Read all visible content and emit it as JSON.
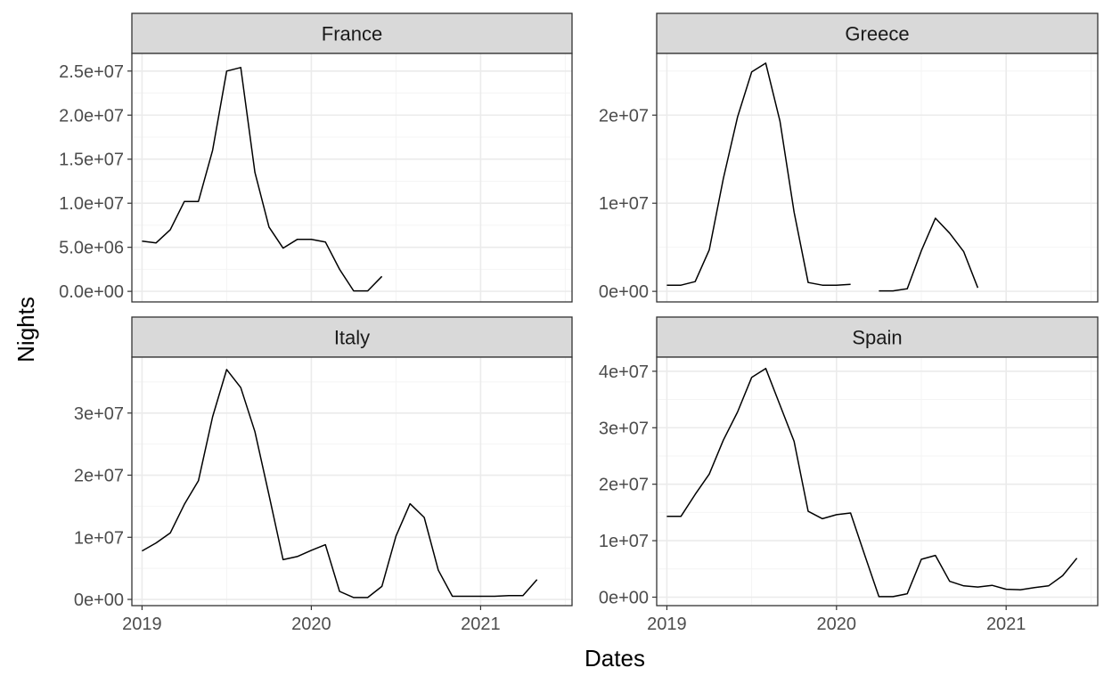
{
  "chart_data": {
    "type": "line",
    "layout": "facet-grid-2x2",
    "xlabel": "Dates",
    "ylabel": "Nights",
    "grid": true,
    "colors": {
      "line": "#000000",
      "strip_fill": "#d9d9d9",
      "panel_border": "#333333",
      "grid_major": "#ebebeb",
      "grid_minor": "#f4f4f4"
    },
    "x_range": [
      2018.94,
      2021.54
    ],
    "x_ticks": [
      2019,
      2020,
      2021
    ],
    "x_tick_labels": [
      "2019",
      "2020",
      "2021"
    ],
    "panels": [
      {
        "name": "France",
        "y_range": [
          -1200000,
          27000000
        ],
        "y_ticks": [
          0,
          5000000,
          10000000,
          15000000,
          20000000,
          25000000
        ],
        "y_tick_labels": [
          "0.0e+00",
          "5.0e+06",
          "1.0e+07",
          "1.5e+07",
          "2.0e+07",
          "2.5e+07"
        ],
        "x": [
          2019.0,
          2019.083,
          2019.167,
          2019.25,
          2019.333,
          2019.417,
          2019.5,
          2019.583,
          2019.667,
          2019.75,
          2019.833,
          2019.917,
          2020.0,
          2020.083,
          2020.167,
          2020.25,
          2020.333,
          2020.417
        ],
        "y": [
          5700000,
          5500000,
          7000000,
          10200000,
          10200000,
          16000000,
          25000000,
          25400000,
          13500000,
          7300000,
          4900000,
          5900000,
          5900000,
          5600000,
          2500000,
          50000,
          50000,
          1700000
        ]
      },
      {
        "name": "Greece",
        "y_range": [
          -1200000,
          27000000
        ],
        "y_ticks": [
          0,
          10000000,
          20000000
        ],
        "y_tick_labels": [
          "0e+00",
          "1e+07",
          "2e+07"
        ],
        "x": [
          2019.0,
          2019.083,
          2019.167,
          2019.25,
          2019.333,
          2019.417,
          2019.5,
          2019.583,
          2019.667,
          2019.75,
          2019.833,
          2019.917,
          2020.0,
          2020.083,
          null,
          2020.25,
          2020.333,
          2020.417,
          2020.5,
          2020.583,
          2020.667,
          2020.75,
          2020.833
        ],
        "y": [
          700000,
          700000,
          1100000,
          4700000,
          12800000,
          19800000,
          24900000,
          25900000,
          19300000,
          9000000,
          1000000,
          700000,
          700000,
          800000,
          null,
          50000,
          50000,
          300000,
          4600000,
          8300000,
          6600000,
          4500000,
          400000
        ]
      },
      {
        "name": "Italy",
        "y_range": [
          -1000000,
          39000000
        ],
        "y_ticks": [
          0,
          10000000,
          20000000,
          30000000
        ],
        "y_tick_labels": [
          "0e+00",
          "1e+07",
          "2e+07",
          "3e+07"
        ],
        "x": [
          2019.0,
          2019.083,
          2019.167,
          2019.25,
          2019.333,
          2019.417,
          2019.5,
          2019.583,
          2019.667,
          2019.75,
          2019.833,
          2019.917,
          2020.0,
          2020.083,
          2020.167,
          2020.25,
          2020.333,
          2020.417,
          2020.5,
          2020.583,
          2020.667,
          2020.75,
          2020.833,
          2020.917,
          2021.0,
          2021.083,
          2021.167,
          2021.25,
          2021.333
        ],
        "y": [
          7800000,
          9100000,
          10700000,
          15300000,
          19100000,
          29400000,
          37000000,
          34100000,
          27000000,
          16800000,
          6400000,
          6900000,
          7900000,
          8800000,
          1300000,
          300000,
          300000,
          2100000,
          10200000,
          15400000,
          13200000,
          4700000,
          500000,
          500000,
          500000,
          500000,
          600000,
          600000,
          3200000
        ]
      },
      {
        "name": "Spain",
        "y_range": [
          -1500000,
          42500000
        ],
        "y_ticks": [
          0,
          10000000,
          20000000,
          30000000,
          40000000
        ],
        "y_tick_labels": [
          "0e+00",
          "1e+07",
          "2e+07",
          "3e+07",
          "4e+07"
        ],
        "x": [
          2019.0,
          2019.083,
          2019.167,
          2019.25,
          2019.333,
          2019.417,
          2019.5,
          2019.583,
          2019.667,
          2019.75,
          2019.833,
          2019.917,
          2020.0,
          2020.083,
          2020.167,
          2020.25,
          2020.333,
          2020.417,
          2020.5,
          2020.583,
          2020.667,
          2020.75,
          2020.833,
          2020.917,
          2021.0,
          2021.083,
          2021.167,
          2021.25,
          2021.333,
          2021.417
        ],
        "y": [
          14300000,
          14300000,
          18200000,
          21800000,
          27800000,
          32800000,
          38900000,
          40500000,
          34000000,
          27600000,
          15200000,
          13900000,
          14600000,
          14900000,
          7400000,
          100000,
          100000,
          600000,
          6700000,
          7400000,
          2800000,
          2000000,
          1800000,
          2100000,
          1400000,
          1300000,
          1700000,
          2000000,
          3800000,
          6900000
        ]
      }
    ]
  }
}
